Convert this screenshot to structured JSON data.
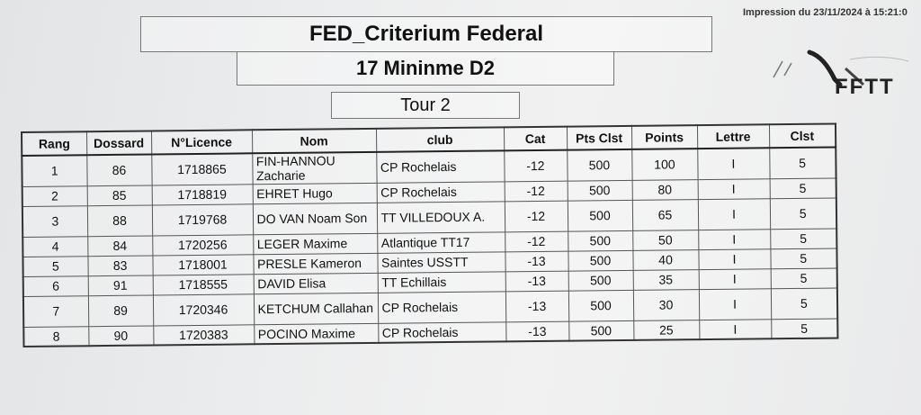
{
  "header": {
    "printed": "Impression du 23/11/2024 à 15:21:0",
    "title": "FED_Criterium Federal",
    "subtitle": "17 Mininme D2",
    "round": "Tour 2",
    "logo_text": "FFTT"
  },
  "table": {
    "columns": [
      "Rang",
      "Dossard",
      "N°Licence",
      "Nom",
      "club",
      "Cat",
      "Pts Clst",
      "Points",
      "Lettre",
      "Clst"
    ],
    "rows": [
      {
        "rang": "1",
        "dossard": "86",
        "licence": "1718865",
        "nom": "FIN-HANNOU Zacharie",
        "club": "CP Rochelais",
        "cat": "-12",
        "pts_clst": "500",
        "points": "100",
        "lettre": "I",
        "clst": "5"
      },
      {
        "rang": "2",
        "dossard": "85",
        "licence": "1718819",
        "nom": "EHRET Hugo",
        "club": "CP Rochelais",
        "cat": "-12",
        "pts_clst": "500",
        "points": "80",
        "lettre": "I",
        "clst": "5"
      },
      {
        "rang": "3",
        "dossard": "88",
        "licence": "1719768",
        "nom": "DO VAN Noam Son",
        "club": "TT VILLEDOUX A.",
        "cat": "-12",
        "pts_clst": "500",
        "points": "65",
        "lettre": "I",
        "clst": "5"
      },
      {
        "rang": "4",
        "dossard": "84",
        "licence": "1720256",
        "nom": "LEGER Maxime",
        "club": "Atlantique TT17",
        "cat": "-12",
        "pts_clst": "500",
        "points": "50",
        "lettre": "I",
        "clst": "5"
      },
      {
        "rang": "5",
        "dossard": "83",
        "licence": "1718001",
        "nom": "PRESLE Kameron",
        "club": "Saintes USSTT",
        "cat": "-13",
        "pts_clst": "500",
        "points": "40",
        "lettre": "I",
        "clst": "5"
      },
      {
        "rang": "6",
        "dossard": "91",
        "licence": "1718555",
        "nom": "DAVID Elisa",
        "club": "TT Echillais",
        "cat": "-13",
        "pts_clst": "500",
        "points": "35",
        "lettre": "I",
        "clst": "5"
      },
      {
        "rang": "7",
        "dossard": "89",
        "licence": "1720346",
        "nom": "KETCHUM Callahan",
        "club": "CP Rochelais",
        "cat": "-13",
        "pts_clst": "500",
        "points": "30",
        "lettre": "I",
        "clst": "5"
      },
      {
        "rang": "8",
        "dossard": "90",
        "licence": "1720383",
        "nom": "POCINO Maxime",
        "club": "CP Rochelais",
        "cat": "-13",
        "pts_clst": "500",
        "points": "25",
        "lettre": "I",
        "clst": "5"
      }
    ]
  }
}
